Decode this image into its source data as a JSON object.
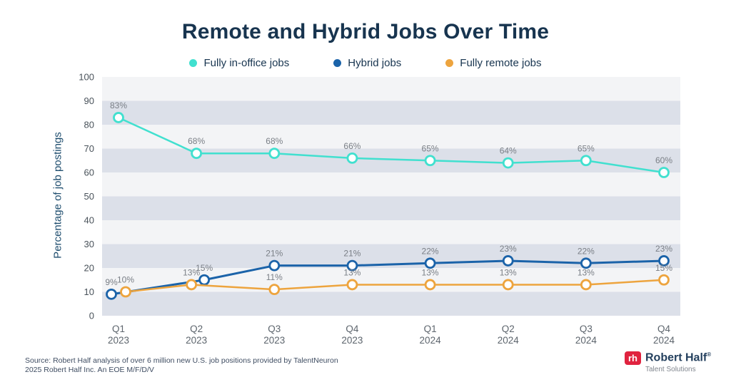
{
  "title": "Remote and Hybrid Jobs Over Time",
  "chart_data": {
    "type": "line",
    "title": "Remote and Hybrid Jobs Over Time",
    "xlabel": "",
    "ylabel": "Percentage of job postings",
    "ylim": [
      0,
      100
    ],
    "ytick_step": 10,
    "grid": "off",
    "legend_position": "top",
    "background_bands": {
      "dark": "#dce0e9",
      "light": "#f3f4f6"
    },
    "data_labels": "percent",
    "categories": [
      [
        "Q1",
        "2023"
      ],
      [
        "Q2",
        "2023"
      ],
      [
        "Q3",
        "2023"
      ],
      [
        "Q4",
        "2023"
      ],
      [
        "Q1",
        "2024"
      ],
      [
        "Q2",
        "2024"
      ],
      [
        "Q3",
        "2024"
      ],
      [
        "Q4",
        "2024"
      ]
    ],
    "series": [
      {
        "name": "Fully in-office jobs",
        "color": "#41e0cf",
        "values": [
          83,
          68,
          68,
          66,
          65,
          64,
          65,
          60
        ]
      },
      {
        "name": "Hybrid jobs",
        "color": "#1b63a9",
        "values": [
          9,
          15,
          21,
          21,
          22,
          23,
          22,
          23
        ]
      },
      {
        "name": "Fully remote jobs",
        "color": "#eda43e",
        "values": [
          10,
          13,
          11,
          13,
          13,
          13,
          13,
          15
        ]
      }
    ]
  },
  "colors": {
    "title_text": "#17344f",
    "y_tick_text": "#49525a",
    "x_tick_text": "#5d656d",
    "data_label_text": "#7a7f86",
    "marker_fill": "#ffffff"
  },
  "source": {
    "line1": "Source: Robert Half analysis of over 6 million new U.S. job positions provided by TalentNeuron",
    "line2": "2025 Robert Half Inc. An EOE M/F/D/V"
  },
  "logo": {
    "mark": "rh",
    "name": "Robert Half",
    "reg": "®",
    "tagline": "Talent Solutions"
  }
}
